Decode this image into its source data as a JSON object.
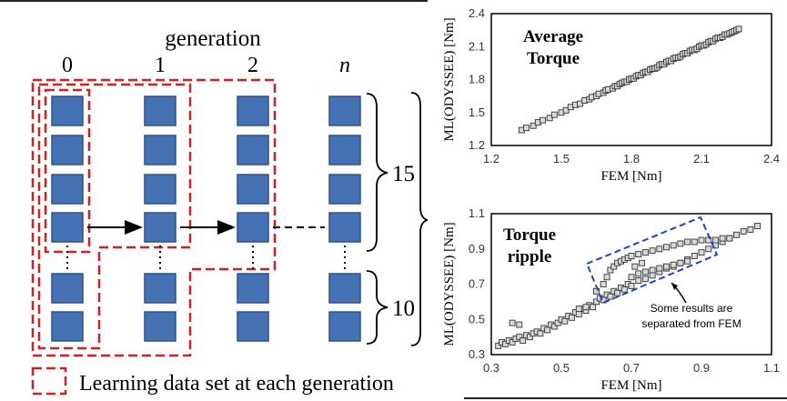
{
  "diagram": {
    "header": "generation",
    "generations": [
      "0",
      "1",
      "2",
      "n"
    ],
    "count_15": "15",
    "count_10": "10",
    "legend": "Learning data set at each generation"
  },
  "colors": {
    "square": "#4472b4",
    "dash_red": "#d02020",
    "dash_blue": "#2440c8",
    "marker_fill": "#d9d9d9",
    "marker_edge": "#333333"
  },
  "chart_data": [
    {
      "type": "scatter",
      "title": "Average Torque",
      "xlabel": "FEM [Nm]",
      "ylabel": "ML(ODYSSEE) [Nm]",
      "xlim": [
        1.2,
        2.4
      ],
      "ylim": [
        1.2,
        2.4
      ],
      "xticks": [
        "1.2",
        "1.5",
        "1.8",
        "2.1",
        "2.4"
      ],
      "yticks": [
        "1.2",
        "1.5",
        "1.8",
        "2.1",
        "2.4"
      ],
      "grid": false,
      "points": [
        [
          1.33,
          1.34
        ],
        [
          1.35,
          1.36
        ],
        [
          1.38,
          1.38
        ],
        [
          1.4,
          1.41
        ],
        [
          1.42,
          1.43
        ],
        [
          1.45,
          1.45
        ],
        [
          1.47,
          1.48
        ],
        [
          1.5,
          1.5
        ],
        [
          1.52,
          1.52
        ],
        [
          1.54,
          1.55
        ],
        [
          1.56,
          1.57
        ],
        [
          1.58,
          1.58
        ],
        [
          1.6,
          1.61
        ],
        [
          1.62,
          1.62
        ],
        [
          1.63,
          1.64
        ],
        [
          1.65,
          1.65
        ],
        [
          1.66,
          1.67
        ],
        [
          1.68,
          1.68
        ],
        [
          1.69,
          1.7
        ],
        [
          1.7,
          1.71
        ],
        [
          1.72,
          1.72
        ],
        [
          1.73,
          1.74
        ],
        [
          1.74,
          1.74
        ],
        [
          1.75,
          1.76
        ],
        [
          1.76,
          1.77
        ],
        [
          1.77,
          1.78
        ],
        [
          1.78,
          1.78
        ],
        [
          1.79,
          1.8
        ],
        [
          1.8,
          1.81
        ],
        [
          1.81,
          1.81
        ],
        [
          1.82,
          1.83
        ],
        [
          1.83,
          1.84
        ],
        [
          1.84,
          1.84
        ],
        [
          1.85,
          1.86
        ],
        [
          1.86,
          1.87
        ],
        [
          1.87,
          1.87
        ],
        [
          1.88,
          1.89
        ],
        [
          1.89,
          1.9
        ],
        [
          1.9,
          1.9
        ],
        [
          1.91,
          1.91
        ],
        [
          1.92,
          1.93
        ],
        [
          1.93,
          1.94
        ],
        [
          1.94,
          1.94
        ],
        [
          1.95,
          1.96
        ],
        [
          1.96,
          1.97
        ],
        [
          1.97,
          1.97
        ],
        [
          1.98,
          1.99
        ],
        [
          1.99,
          2.0
        ],
        [
          2.0,
          2.0
        ],
        [
          2.01,
          2.01
        ],
        [
          2.02,
          2.03
        ],
        [
          2.03,
          2.04
        ],
        [
          2.04,
          2.04
        ],
        [
          2.05,
          2.06
        ],
        [
          2.06,
          2.07
        ],
        [
          2.07,
          2.07
        ],
        [
          2.08,
          2.08
        ],
        [
          2.09,
          2.1
        ],
        [
          2.1,
          2.11
        ],
        [
          2.11,
          2.11
        ],
        [
          2.12,
          2.12
        ],
        [
          2.13,
          2.14
        ],
        [
          2.14,
          2.15
        ],
        [
          2.15,
          2.15
        ],
        [
          2.16,
          2.17
        ],
        [
          2.17,
          2.18
        ],
        [
          2.18,
          2.18
        ],
        [
          2.19,
          2.19
        ],
        [
          2.2,
          2.21
        ],
        [
          2.21,
          2.21
        ],
        [
          2.22,
          2.22
        ],
        [
          2.23,
          2.23
        ],
        [
          2.24,
          2.24
        ],
        [
          2.25,
          2.25
        ],
        [
          2.26,
          2.26
        ]
      ]
    },
    {
      "type": "scatter",
      "title": "Torque ripple",
      "xlabel": "FEM [Nm]",
      "ylabel": "ML(ODYSSEE) [Nm]",
      "xlim": [
        0.3,
        1.1
      ],
      "ylim": [
        0.3,
        1.1
      ],
      "xticks": [
        "0.3",
        "0.5",
        "0.7",
        "0.9",
        "1.1"
      ],
      "yticks": [
        "0.3",
        "0.5",
        "0.7",
        "0.9",
        "1.1"
      ],
      "grid": false,
      "annotation": "Some results are separated from FEM",
      "points": [
        [
          0.32,
          0.35
        ],
        [
          0.33,
          0.37
        ],
        [
          0.34,
          0.36
        ],
        [
          0.35,
          0.38
        ],
        [
          0.36,
          0.37
        ],
        [
          0.37,
          0.39
        ],
        [
          0.38,
          0.4
        ],
        [
          0.39,
          0.38
        ],
        [
          0.4,
          0.41
        ],
        [
          0.41,
          0.4
        ],
        [
          0.42,
          0.42
        ],
        [
          0.43,
          0.43
        ],
        [
          0.44,
          0.42
        ],
        [
          0.45,
          0.45
        ],
        [
          0.46,
          0.44
        ],
        [
          0.47,
          0.47
        ],
        [
          0.48,
          0.46
        ],
        [
          0.49,
          0.48
        ],
        [
          0.5,
          0.5
        ],
        [
          0.51,
          0.49
        ],
        [
          0.52,
          0.52
        ],
        [
          0.53,
          0.51
        ],
        [
          0.54,
          0.54
        ],
        [
          0.55,
          0.53
        ],
        [
          0.56,
          0.56
        ],
        [
          0.57,
          0.55
        ],
        [
          0.58,
          0.58
        ],
        [
          0.59,
          0.57
        ],
        [
          0.6,
          0.6
        ],
        [
          0.61,
          0.62
        ],
        [
          0.62,
          0.61
        ],
        [
          0.63,
          0.64
        ],
        [
          0.64,
          0.63
        ],
        [
          0.65,
          0.66
        ],
        [
          0.66,
          0.65
        ],
        [
          0.67,
          0.68
        ],
        [
          0.68,
          0.67
        ],
        [
          0.69,
          0.7
        ],
        [
          0.7,
          0.69
        ],
        [
          0.72,
          0.72
        ],
        [
          0.74,
          0.73
        ],
        [
          0.76,
          0.75
        ],
        [
          0.78,
          0.77
        ],
        [
          0.8,
          0.79
        ],
        [
          0.82,
          0.8
        ],
        [
          0.84,
          0.82
        ],
        [
          0.86,
          0.84
        ],
        [
          0.88,
          0.86
        ],
        [
          0.9,
          0.88
        ],
        [
          0.92,
          0.9
        ],
        [
          0.94,
          0.92
        ],
        [
          0.96,
          0.94
        ],
        [
          0.98,
          0.96
        ],
        [
          1.0,
          0.98
        ],
        [
          1.02,
          1.0
        ],
        [
          1.04,
          1.01
        ],
        [
          1.06,
          1.03
        ],
        [
          0.36,
          0.48
        ],
        [
          0.38,
          0.47
        ],
        [
          0.55,
          0.56
        ],
        [
          0.57,
          0.57
        ],
        [
          0.6,
          0.66
        ],
        [
          0.62,
          0.7
        ],
        [
          0.63,
          0.74
        ],
        [
          0.64,
          0.78
        ],
        [
          0.65,
          0.8
        ],
        [
          0.66,
          0.82
        ],
        [
          0.67,
          0.83
        ],
        [
          0.68,
          0.84
        ],
        [
          0.69,
          0.85
        ],
        [
          0.7,
          0.86
        ],
        [
          0.72,
          0.87
        ],
        [
          0.74,
          0.88
        ],
        [
          0.76,
          0.89
        ],
        [
          0.78,
          0.9
        ],
        [
          0.8,
          0.91
        ],
        [
          0.82,
          0.92
        ],
        [
          0.84,
          0.93
        ],
        [
          0.86,
          0.94
        ],
        [
          0.88,
          0.94
        ],
        [
          0.9,
          0.95
        ],
        [
          0.92,
          0.95
        ],
        [
          0.94,
          0.95
        ],
        [
          0.96,
          0.96
        ],
        [
          0.98,
          0.96
        ],
        [
          0.7,
          0.74
        ],
        [
          0.72,
          0.76
        ],
        [
          0.74,
          0.77
        ],
        [
          0.76,
          0.78
        ],
        [
          0.78,
          0.79
        ],
        [
          0.8,
          0.8
        ],
        [
          0.82,
          0.81
        ],
        [
          0.84,
          0.82
        ],
        [
          0.86,
          0.83
        ],
        [
          0.71,
          0.8
        ],
        [
          0.73,
          0.82
        ]
      ]
    }
  ]
}
